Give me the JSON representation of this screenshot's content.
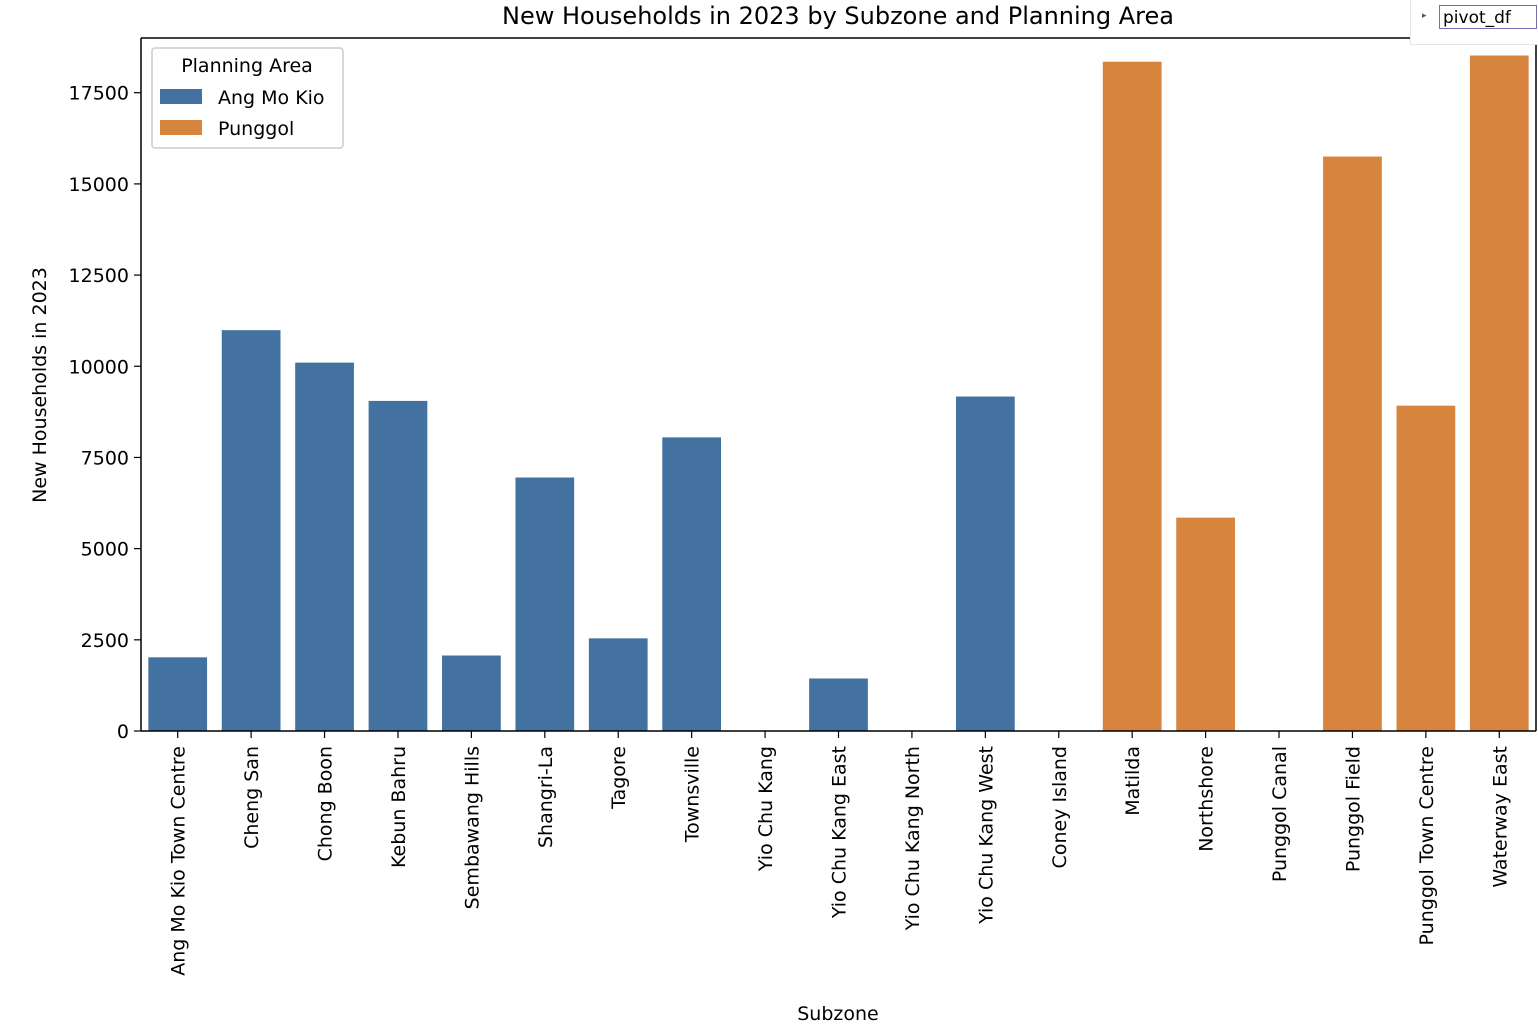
{
  "colors": {
    "ang_mo_kio": "#4472a0",
    "punggol": "#d6843e",
    "axis": "#000000"
  },
  "variable_widget": {
    "expand_icon": "caret-right-icon",
    "label": "pivot_df"
  },
  "chart_data": {
    "type": "bar",
    "title": "New Households in 2023 by Subzone and Planning Area",
    "xlabel": "Subzone",
    "ylabel": "New Households in 2023",
    "ylim": [
      0,
      19000
    ],
    "yticks": [
      0,
      2500,
      5000,
      7500,
      10000,
      12500,
      15000,
      17500
    ],
    "legend": {
      "title": "Planning Area",
      "placement": "top-left",
      "entries": [
        "Ang Mo Kio",
        "Punggol"
      ]
    },
    "categories": [
      "Ang Mo Kio Town Centre",
      "Cheng San",
      "Chong Boon",
      "Kebun Bahru",
      "Sembawang Hills",
      "Shangri-La",
      "Tagore",
      "Townsville",
      "Yio Chu Kang",
      "Yio Chu Kang East",
      "Yio Chu Kang North",
      "Yio Chu Kang West",
      "Coney Island",
      "Matilda",
      "Northshore",
      "Punggol Canal",
      "Punggol Field",
      "Punggol Town Centre",
      "Waterway East"
    ],
    "series": [
      {
        "name": "Ang Mo Kio",
        "values": [
          2020,
          10990,
          10100,
          9050,
          2070,
          6950,
          2540,
          8050,
          0,
          1440,
          0,
          9170,
          null,
          null,
          null,
          null,
          null,
          null,
          null
        ]
      },
      {
        "name": "Punggol",
        "values": [
          null,
          null,
          null,
          null,
          null,
          null,
          null,
          null,
          null,
          null,
          null,
          null,
          0,
          18350,
          5850,
          0,
          15750,
          8920,
          18520
        ]
      }
    ]
  }
}
